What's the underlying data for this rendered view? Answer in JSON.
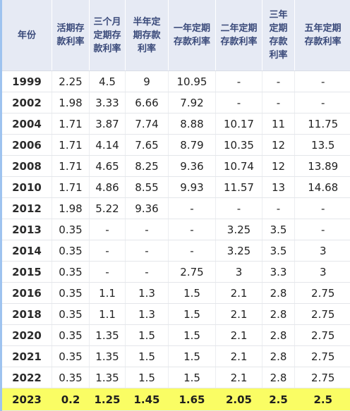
{
  "headers": [
    "年份",
    "活期存\n款利率",
    "三个月\n定期存\n款利率",
    "半年定\n期存款\n利率",
    "一年定期\n存款利率",
    "二年定期\n存款利率",
    "三年\n定期\n存款\n利率",
    "五年定期\n存款利率"
  ],
  "rows": [
    [
      "1999",
      "2.25",
      "4.5",
      "9",
      "10.95",
      "-",
      "-",
      "-"
    ],
    [
      "2002",
      "1.98",
      "3.33",
      "6.66",
      "7.92",
      "-",
      "-",
      "-"
    ],
    [
      "2004",
      "1.71",
      "3.87",
      "7.74",
      "8.88",
      "10.17",
      "11",
      "11.75"
    ],
    [
      "2006",
      "1.71",
      "4.14",
      "7.65",
      "8.79",
      "10.35",
      "12",
      "13.5"
    ],
    [
      "2008",
      "1.71",
      "4.65",
      "8.25",
      "9.36",
      "10.74",
      "12",
      "13.89"
    ],
    [
      "2010",
      "1.71",
      "4.86",
      "8.55",
      "9.93",
      "11.57",
      "13",
      "14.68"
    ],
    [
      "2012",
      "1.98",
      "5.22",
      "9.36",
      "-",
      "-",
      "-",
      "-"
    ],
    [
      "2013",
      "0.35",
      "-",
      "-",
      "-",
      "3.25",
      "3.5",
      "-"
    ],
    [
      "2014",
      "0.35",
      "-",
      "-",
      "-",
      "3.25",
      "3.5",
      "3"
    ],
    [
      "2015",
      "0.35",
      "-",
      "-",
      "2.75",
      "3",
      "3.3",
      "3"
    ],
    [
      "2016",
      "0.35",
      "1.1",
      "1.3",
      "1.5",
      "2.1",
      "2.8",
      "2.75"
    ],
    [
      "2018",
      "0.35",
      "1.1",
      "1.3",
      "1.5",
      "2.1",
      "2.8",
      "2.75"
    ],
    [
      "2020",
      "0.35",
      "1.35",
      "1.5",
      "1.5",
      "2.1",
      "2.8",
      "2.75"
    ],
    [
      "2021",
      "0.35",
      "1.35",
      "1.5",
      "1.5",
      "2.1",
      "2.8",
      "2.75"
    ],
    [
      "2022",
      "0.35",
      "1.35",
      "1.5",
      "1.5",
      "2.1",
      "2.8",
      "2.75"
    ],
    [
      "2023",
      "0.2",
      "1.25",
      "1.45",
      "1.65",
      "2.05",
      "2.5",
      "2.5"
    ]
  ],
  "highlight_row": "2023",
  "colors": {
    "header_bg": "#e6eaf4",
    "header_text": "#3a4a7a",
    "highlight": "#fafd64",
    "left_accent": "#9ec3ef"
  }
}
